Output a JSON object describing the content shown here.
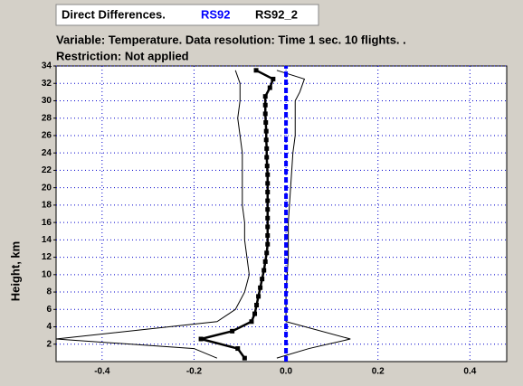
{
  "chart_data": {
    "type": "line",
    "title": "Direct Differences.",
    "subtitle": "Variable: Temperature. Data resolution: Time 1 sec. 10 flights. .",
    "restriction": "Restriction: Not applied",
    "ylabel": "Height, km",
    "xlim": [
      -0.5,
      0.48
    ],
    "ylim": [
      0,
      34
    ],
    "xticks": [
      -0.4,
      -0.2,
      {
        "value": 0,
        "label": "0.0"
      },
      0.2,
      0.4
    ],
    "yticks": [
      2,
      4,
      6,
      8,
      10,
      12,
      14,
      16,
      18,
      20,
      22,
      24,
      26,
      28,
      30,
      32,
      34
    ],
    "grid": true,
    "grid_color": "#0000cc",
    "series": [
      {
        "name": "RS92",
        "color": "#0000ff",
        "dashed": true,
        "x": [
          0,
          0
        ],
        "y": [
          0,
          34
        ]
      },
      {
        "name": "RS92_2",
        "color": "#000000",
        "markers": true,
        "x": [
          -0.09,
          -0.105,
          -0.185,
          -0.117,
          -0.075,
          -0.068,
          -0.064,
          -0.06,
          -0.056,
          -0.052,
          -0.048,
          -0.045,
          -0.042,
          -0.04,
          -0.04,
          -0.04,
          -0.04,
          -0.04,
          -0.04,
          -0.04,
          -0.04,
          -0.04,
          -0.041,
          -0.042,
          -0.042,
          -0.043,
          -0.043,
          -0.044,
          -0.045,
          -0.045,
          -0.045,
          -0.035,
          -0.028,
          -0.065
        ],
        "y": [
          0.4,
          1.5,
          2.6,
          3.5,
          4.6,
          5.5,
          6.5,
          7.5,
          8.5,
          9.5,
          10.5,
          11.5,
          12.5,
          13.5,
          14.5,
          15.5,
          16.5,
          17.5,
          18.5,
          19.5,
          20.5,
          21.5,
          22.5,
          23.5,
          24.5,
          25.5,
          26.5,
          27.5,
          28.5,
          29.5,
          30.5,
          31.5,
          32.5,
          33.5
        ]
      }
    ],
    "envelope": [
      {
        "color": "#000000",
        "x": [
          -0.11,
          -0.1,
          -0.1,
          -0.105,
          -0.1,
          -0.095,
          -0.095,
          -0.095,
          -0.095,
          -0.09,
          -0.09,
          -0.085,
          -0.08,
          -0.09,
          -0.11,
          -0.15,
          -0.5,
          -0.2,
          -0.15
        ],
        "y": [
          33.5,
          32,
          30,
          28,
          26,
          24,
          22,
          20,
          18,
          16,
          14,
          12,
          10,
          8,
          6,
          4.6,
          2.6,
          1.5,
          0.4
        ]
      },
      {
        "color": "#000000",
        "x": [
          -0.02,
          0.04,
          0.03,
          0.02,
          0.02,
          0.02,
          0.015,
          0.01,
          0.005,
          0.005,
          0,
          0,
          0,
          0.14,
          0.05,
          -0.02
        ],
        "y": [
          33.5,
          32.5,
          31,
          30,
          28,
          26,
          24,
          20,
          16,
          12,
          8,
          6,
          4.6,
          2.6,
          1.5,
          0.4
        ]
      }
    ]
  }
}
